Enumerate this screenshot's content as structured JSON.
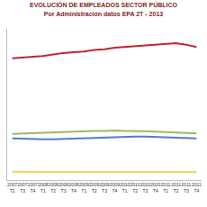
{
  "chart_data": {
    "type": "line",
    "title": "EVOLUCIÓN DE EMPLEADOS SECTOR PÚBLICO",
    "subtitle": "Por Administración datos EPA 2T - 2013",
    "categories": [
      "2007 T2",
      "2007 T3",
      "2007 T4",
      "2008 T1",
      "2008 T2",
      "2008 T3",
      "2008 T4",
      "2009 T1",
      "2009 T2",
      "2009 T3",
      "2009 T4",
      "2010 T1",
      "2010 T2",
      "2010 T3",
      "2010 T4",
      "2011 T1",
      "2011 T2",
      "2011 T3",
      "2011 T4"
    ],
    "series": [
      {
        "color": "#c0272d",
        "values": [
          1610,
          1620,
          1630,
          1640,
          1660,
          1680,
          1690,
          1700,
          1720,
          1730,
          1750,
          1760,
          1770,
          1780,
          1790,
          1800,
          1810,
          1790,
          1760
        ]
      },
      {
        "color": "#9bbb59",
        "values": [
          610,
          615,
          620,
          625,
          630,
          640,
          640,
          645,
          650,
          650,
          655,
          650,
          650,
          645,
          640,
          635,
          630,
          625,
          615
        ]
      },
      {
        "color": "#4f81bd",
        "values": [
          550,
          545,
          545,
          540,
          540,
          545,
          550,
          550,
          555,
          560,
          565,
          570,
          575,
          575,
          570,
          565,
          560,
          555,
          550
        ]
      },
      {
        "color": "#f2d64b",
        "values": [
          110,
          108,
          108,
          106,
          105,
          105,
          107,
          108,
          110,
          110,
          112,
          112,
          110,
          110,
          108,
          108,
          106,
          105,
          104
        ]
      }
    ],
    "ylim": [
      0,
      2000
    ],
    "yticks": [],
    "grid": false,
    "tick_labels": "x"
  }
}
